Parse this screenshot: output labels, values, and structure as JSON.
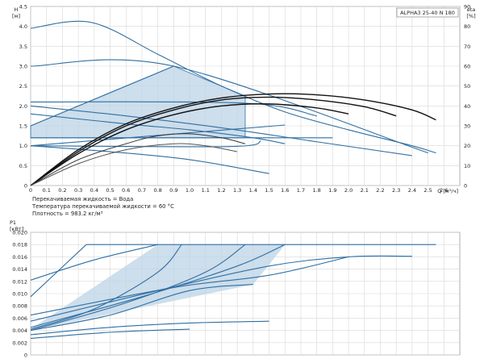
{
  "chart_data": [
    {
      "type": "line",
      "title": "ALPHA3 25-40 N 180",
      "ylabel_top": "H",
      "ylabel_unit": "[м]",
      "y2label_top": "eta",
      "y2label_unit": "[%]",
      "xlabel": "Q [м³/ч]",
      "xlim": [
        0,
        2.7
      ],
      "ylim": [
        0,
        4.5
      ],
      "y2lim": [
        0,
        90
      ],
      "x_ticks": [
        "0",
        "0.1",
        "0.2",
        "0.3",
        "0.4",
        "0.5",
        "0.6",
        "0.7",
        "0.8",
        "0.9",
        "1.0",
        "1.1",
        "1.2",
        "1.3",
        "1.4",
        "1.5",
        "1.6",
        "1.7",
        "1.8",
        "1.9",
        "2.0",
        "2.1",
        "2.2",
        "2.3",
        "2.4",
        "2.5",
        "2.6"
      ],
      "y_ticks": [
        "0",
        "0.5",
        "1.0",
        "1.5",
        "2.0",
        "2.5",
        "3.0",
        "3.5",
        "4.0",
        "4.5"
      ],
      "y2_ticks": [
        "0",
        "10",
        "20",
        "30",
        "40",
        "50",
        "60",
        "70",
        "80",
        "90"
      ],
      "notes": [
        "Перекачиваемая жидкость = Вода",
        "Температура перекачиваемой жидкости = 60 °C",
        "Плотность = 983.2 кг/м³"
      ],
      "shaded_region": [
        [
          0,
          1.5
        ],
        [
          0.9,
          3.0
        ],
        [
          1.35,
          2.25
        ],
        [
          1.35,
          1.2
        ],
        [
          0,
          1.2
        ]
      ],
      "series": [
        {
          "name": "constant-pressure-3.0",
          "color": "#2f6fa3",
          "points": [
            [
              0,
              3.0
            ],
            [
              0.9,
              3.0
            ],
            [
              2.5,
              0.82
            ]
          ]
        },
        {
          "name": "constant-pressure-2.1",
          "color": "#2f6fa3",
          "points": [
            [
              0,
              2.1
            ],
            [
              1.35,
              2.07
            ],
            [
              1.8,
              1.75
            ]
          ]
        },
        {
          "name": "proportional-upper",
          "color": "#2f6fa3",
          "points": [
            [
              0,
              1.5
            ],
            [
              0.9,
              3.0
            ]
          ]
        },
        {
          "name": "proportional-lower",
          "color": "#2f6fa3",
          "points": [
            [
              0,
              1.0
            ],
            [
              1.6,
              1.52
            ]
          ]
        },
        {
          "name": "constant-curve-max",
          "color": "#2f6fa3",
          "points": [
            [
              0,
              3.95
            ],
            [
              0.38,
              4.1
            ],
            [
              0.8,
              3.3
            ],
            [
              1.2,
              2.5
            ],
            [
              1.6,
              1.85
            ],
            [
              2.0,
              1.4
            ],
            [
              2.4,
              1.0
            ],
            [
              2.55,
              0.82
            ]
          ]
        },
        {
          "name": "constant-1.2",
          "color": "#2f6fa3",
          "points": [
            [
              0,
              1.2
            ],
            [
              1.9,
              1.2
            ]
          ]
        },
        {
          "name": "constant-1.0",
          "color": "#2f6fa3",
          "points": [
            [
              0,
              1.0
            ],
            [
              1.25,
              0.98
            ],
            [
              1.45,
              1.12
            ]
          ]
        },
        {
          "name": "autoadapt-low",
          "color": "#2f6fa3",
          "points": [
            [
              0,
              1.0
            ],
            [
              0.5,
              0.85
            ],
            [
              1.0,
              0.65
            ],
            [
              1.5,
              0.3
            ]
          ]
        },
        {
          "name": "autoadapt-mid",
          "color": "#2f6fa3",
          "points": [
            [
              0,
              2.0
            ],
            [
              0.6,
              1.75
            ],
            [
              1.2,
              1.45
            ],
            [
              1.8,
              1.1
            ],
            [
              2.4,
              0.75
            ]
          ]
        },
        {
          "name": "speed-1-upper",
          "color": "#2f6fa3",
          "points": [
            [
              0,
              1.8
            ],
            [
              0.6,
              1.55
            ],
            [
              1.0,
              1.4
            ],
            [
              1.4,
              1.2
            ],
            [
              1.6,
              1.05
            ]
          ]
        },
        {
          "name": "qh-black-1",
          "color": "#111111",
          "points": [
            [
              0,
              0
            ],
            [
              0.3,
              0.9
            ],
            [
              0.6,
              1.55
            ],
            [
              0.9,
              1.95
            ],
            [
              1.2,
              2.2
            ],
            [
              1.5,
              2.3
            ],
            [
              1.8,
              2.28
            ],
            [
              2.1,
              2.15
            ],
            [
              2.4,
              1.9
            ],
            [
              2.55,
              1.65
            ]
          ]
        },
        {
          "name": "qh-black-2",
          "color": "#111111",
          "points": [
            [
              0,
              0
            ],
            [
              0.3,
              0.85
            ],
            [
              0.6,
              1.5
            ],
            [
              0.9,
              1.9
            ],
            [
              1.2,
              2.15
            ],
            [
              1.5,
              2.22
            ],
            [
              1.8,
              2.15
            ],
            [
              2.1,
              1.98
            ],
            [
              2.3,
              1.75
            ]
          ]
        },
        {
          "name": "qh-black-3",
          "color": "#111111",
          "points": [
            [
              0,
              0
            ],
            [
              0.3,
              0.8
            ],
            [
              0.6,
              1.4
            ],
            [
              0.9,
              1.78
            ],
            [
              1.2,
              2.0
            ],
            [
              1.5,
              2.05
            ],
            [
              1.8,
              1.95
            ],
            [
              2.0,
              1.8
            ]
          ]
        },
        {
          "name": "qh-black-4",
          "color": "#333333",
          "points": [
            [
              0,
              0
            ],
            [
              0.3,
              0.65
            ],
            [
              0.6,
              1.05
            ],
            [
              0.8,
              1.25
            ],
            [
              1.0,
              1.3
            ],
            [
              1.2,
              1.2
            ],
            [
              1.35,
              1.05
            ]
          ]
        },
        {
          "name": "qh-black-5",
          "color": "#555555",
          "points": [
            [
              0,
              0
            ],
            [
              0.3,
              0.55
            ],
            [
              0.6,
              0.9
            ],
            [
              0.9,
              1.05
            ],
            [
              1.1,
              1.0
            ],
            [
              1.3,
              0.85
            ]
          ]
        }
      ]
    },
    {
      "type": "line",
      "ylabel_top": "P1",
      "ylabel_unit": "[кВт]",
      "xlim": [
        0,
        2.7
      ],
      "ylim": [
        0,
        0.02
      ],
      "y_ticks": [
        "0",
        "0.002",
        "0.004",
        "0.006",
        "0.008",
        "0.010",
        "0.012",
        "0.014",
        "0.016",
        "0.018",
        "0.020"
      ],
      "shaded_region": [
        [
          0,
          0.0042
        ],
        [
          0.8,
          0.018
        ],
        [
          1.6,
          0.018
        ],
        [
          1.4,
          0.0115
        ],
        [
          0,
          0.004
        ]
      ],
      "series": [
        {
          "name": "p1-max",
          "color": "#2f6fa3",
          "points": [
            [
              0.35,
              0.018
            ],
            [
              2.55,
              0.018
            ]
          ]
        },
        {
          "name": "p1-a",
          "color": "#2f6fa3",
          "points": [
            [
              0,
              0.0095
            ],
            [
              0.35,
              0.018
            ]
          ]
        },
        {
          "name": "p1-b",
          "color": "#2f6fa3",
          "points": [
            [
              0,
              0.0122
            ],
            [
              0.4,
              0.0155
            ],
            [
              0.8,
              0.018
            ]
          ]
        },
        {
          "name": "p1-c",
          "color": "#2f6fa3",
          "points": [
            [
              0,
              0.0042
            ],
            [
              0.4,
              0.0075
            ],
            [
              0.8,
              0.0135
            ],
            [
              0.95,
              0.018
            ]
          ]
        },
        {
          "name": "p1-d",
          "color": "#2f6fa3",
          "points": [
            [
              0,
              0.004
            ],
            [
              0.6,
              0.0085
            ],
            [
              1.1,
              0.0135
            ],
            [
              1.35,
              0.018
            ]
          ]
        },
        {
          "name": "p1-e",
          "color": "#2f6fa3",
          "points": [
            [
              0,
              0.0045
            ],
            [
              0.7,
              0.0095
            ],
            [
              1.3,
              0.0145
            ],
            [
              1.6,
              0.018
            ]
          ]
        },
        {
          "name": "p1-f",
          "color": "#2f6fa3",
          "points": [
            [
              0,
              0.0055
            ],
            [
              0.8,
              0.0105
            ],
            [
              1.5,
              0.0145
            ],
            [
              2.0,
              0.016
            ],
            [
              2.4,
              0.0161
            ]
          ]
        },
        {
          "name": "p1-g",
          "color": "#2f6fa3",
          "points": [
            [
              0,
              0.0065
            ],
            [
              0.9,
              0.011
            ],
            [
              1.5,
              0.013
            ],
            [
              2.0,
              0.016
            ]
          ]
        },
        {
          "name": "p1-h",
          "color": "#2f6fa3",
          "points": [
            [
              0,
              0.004
            ],
            [
              0.5,
              0.0065
            ],
            [
              1.0,
              0.0105
            ],
            [
              1.4,
              0.0115
            ]
          ]
        },
        {
          "name": "p1-i",
          "color": "#2f6fa3",
          "points": [
            [
              0,
              0.0033
            ],
            [
              0.5,
              0.0045
            ],
            [
              1.0,
              0.0052
            ],
            [
              1.5,
              0.0055
            ]
          ]
        },
        {
          "name": "p1-j",
          "color": "#2f6fa3",
          "points": [
            [
              0,
              0.0027
            ],
            [
              0.5,
              0.0037
            ],
            [
              1.0,
              0.0042
            ]
          ]
        }
      ]
    }
  ]
}
